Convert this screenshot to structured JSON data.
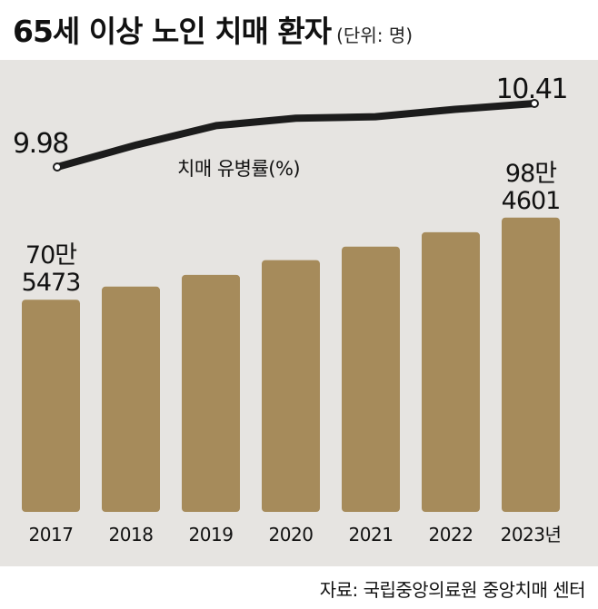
{
  "title": "65세 이상 노인 치매 환자",
  "unit": "(단위: 명)",
  "source": "자료: 국립중앙의료원 중앙치매 센터",
  "colors": {
    "bar": "#a68b5b",
    "line": "#1c1c1c",
    "background": "#e6e4e1"
  },
  "chart_data": {
    "type": "bar",
    "categories": [
      "2017",
      "2018",
      "2019",
      "2020",
      "2021",
      "2022",
      "2023년"
    ],
    "series": [
      {
        "values": [
          705473,
          750000,
          790000,
          840000,
          886000,
          935000,
          984601
        ]
      }
    ],
    "bar_labels": [
      {
        "index": 0,
        "lines": [
          "70만",
          "5473"
        ]
      },
      {
        "index": 6,
        "lines": [
          "98만",
          "4601"
        ]
      }
    ],
    "line": {
      "name": "치매 유병률(%)",
      "values": [
        9.98,
        10.13,
        10.26,
        10.31,
        10.32,
        10.37,
        10.41
      ],
      "labels": [
        {
          "index": 0,
          "text": "9.98"
        },
        {
          "index": 6,
          "text": "10.41"
        }
      ]
    },
    "grid": false
  }
}
